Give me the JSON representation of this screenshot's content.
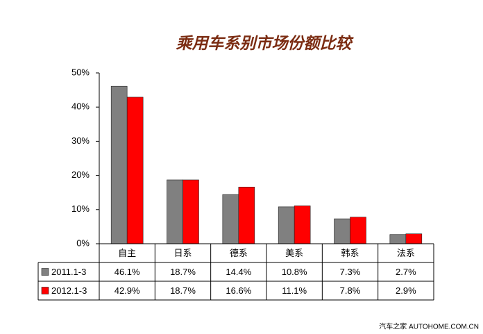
{
  "chart_data": {
    "type": "bar",
    "title": "乘用车系别市场份额比较",
    "categories": [
      "自主",
      "日系",
      "德系",
      "美系",
      "韩系",
      "法系"
    ],
    "series": [
      {
        "name": "2011.1-3",
        "color": "#808080",
        "values": [
          46.1,
          18.7,
          14.4,
          10.8,
          7.3,
          2.7
        ],
        "value_labels": [
          "46.1%",
          "18.7%",
          "14.4%",
          "10.8%",
          "7.3%",
          "2.7%"
        ]
      },
      {
        "name": "2012.1-3",
        "color": "#ff0000",
        "values": [
          42.9,
          18.7,
          16.6,
          11.1,
          7.8,
          2.9
        ],
        "value_labels": [
          "42.9%",
          "18.7%",
          "16.6%",
          "11.1%",
          "7.8%",
          "2.9%"
        ]
      }
    ],
    "ylim": [
      0,
      50
    ],
    "yticks": [
      {
        "value": 0,
        "label": "0%"
      },
      {
        "value": 10,
        "label": "10%"
      },
      {
        "value": 20,
        "label": "20%"
      },
      {
        "value": 30,
        "label": "30%"
      },
      {
        "value": 40,
        "label": "40%"
      },
      {
        "value": 50,
        "label": "50%"
      }
    ],
    "grid": false,
    "watermark": "汽车之家 AUTOHOME.COM.CN"
  }
}
